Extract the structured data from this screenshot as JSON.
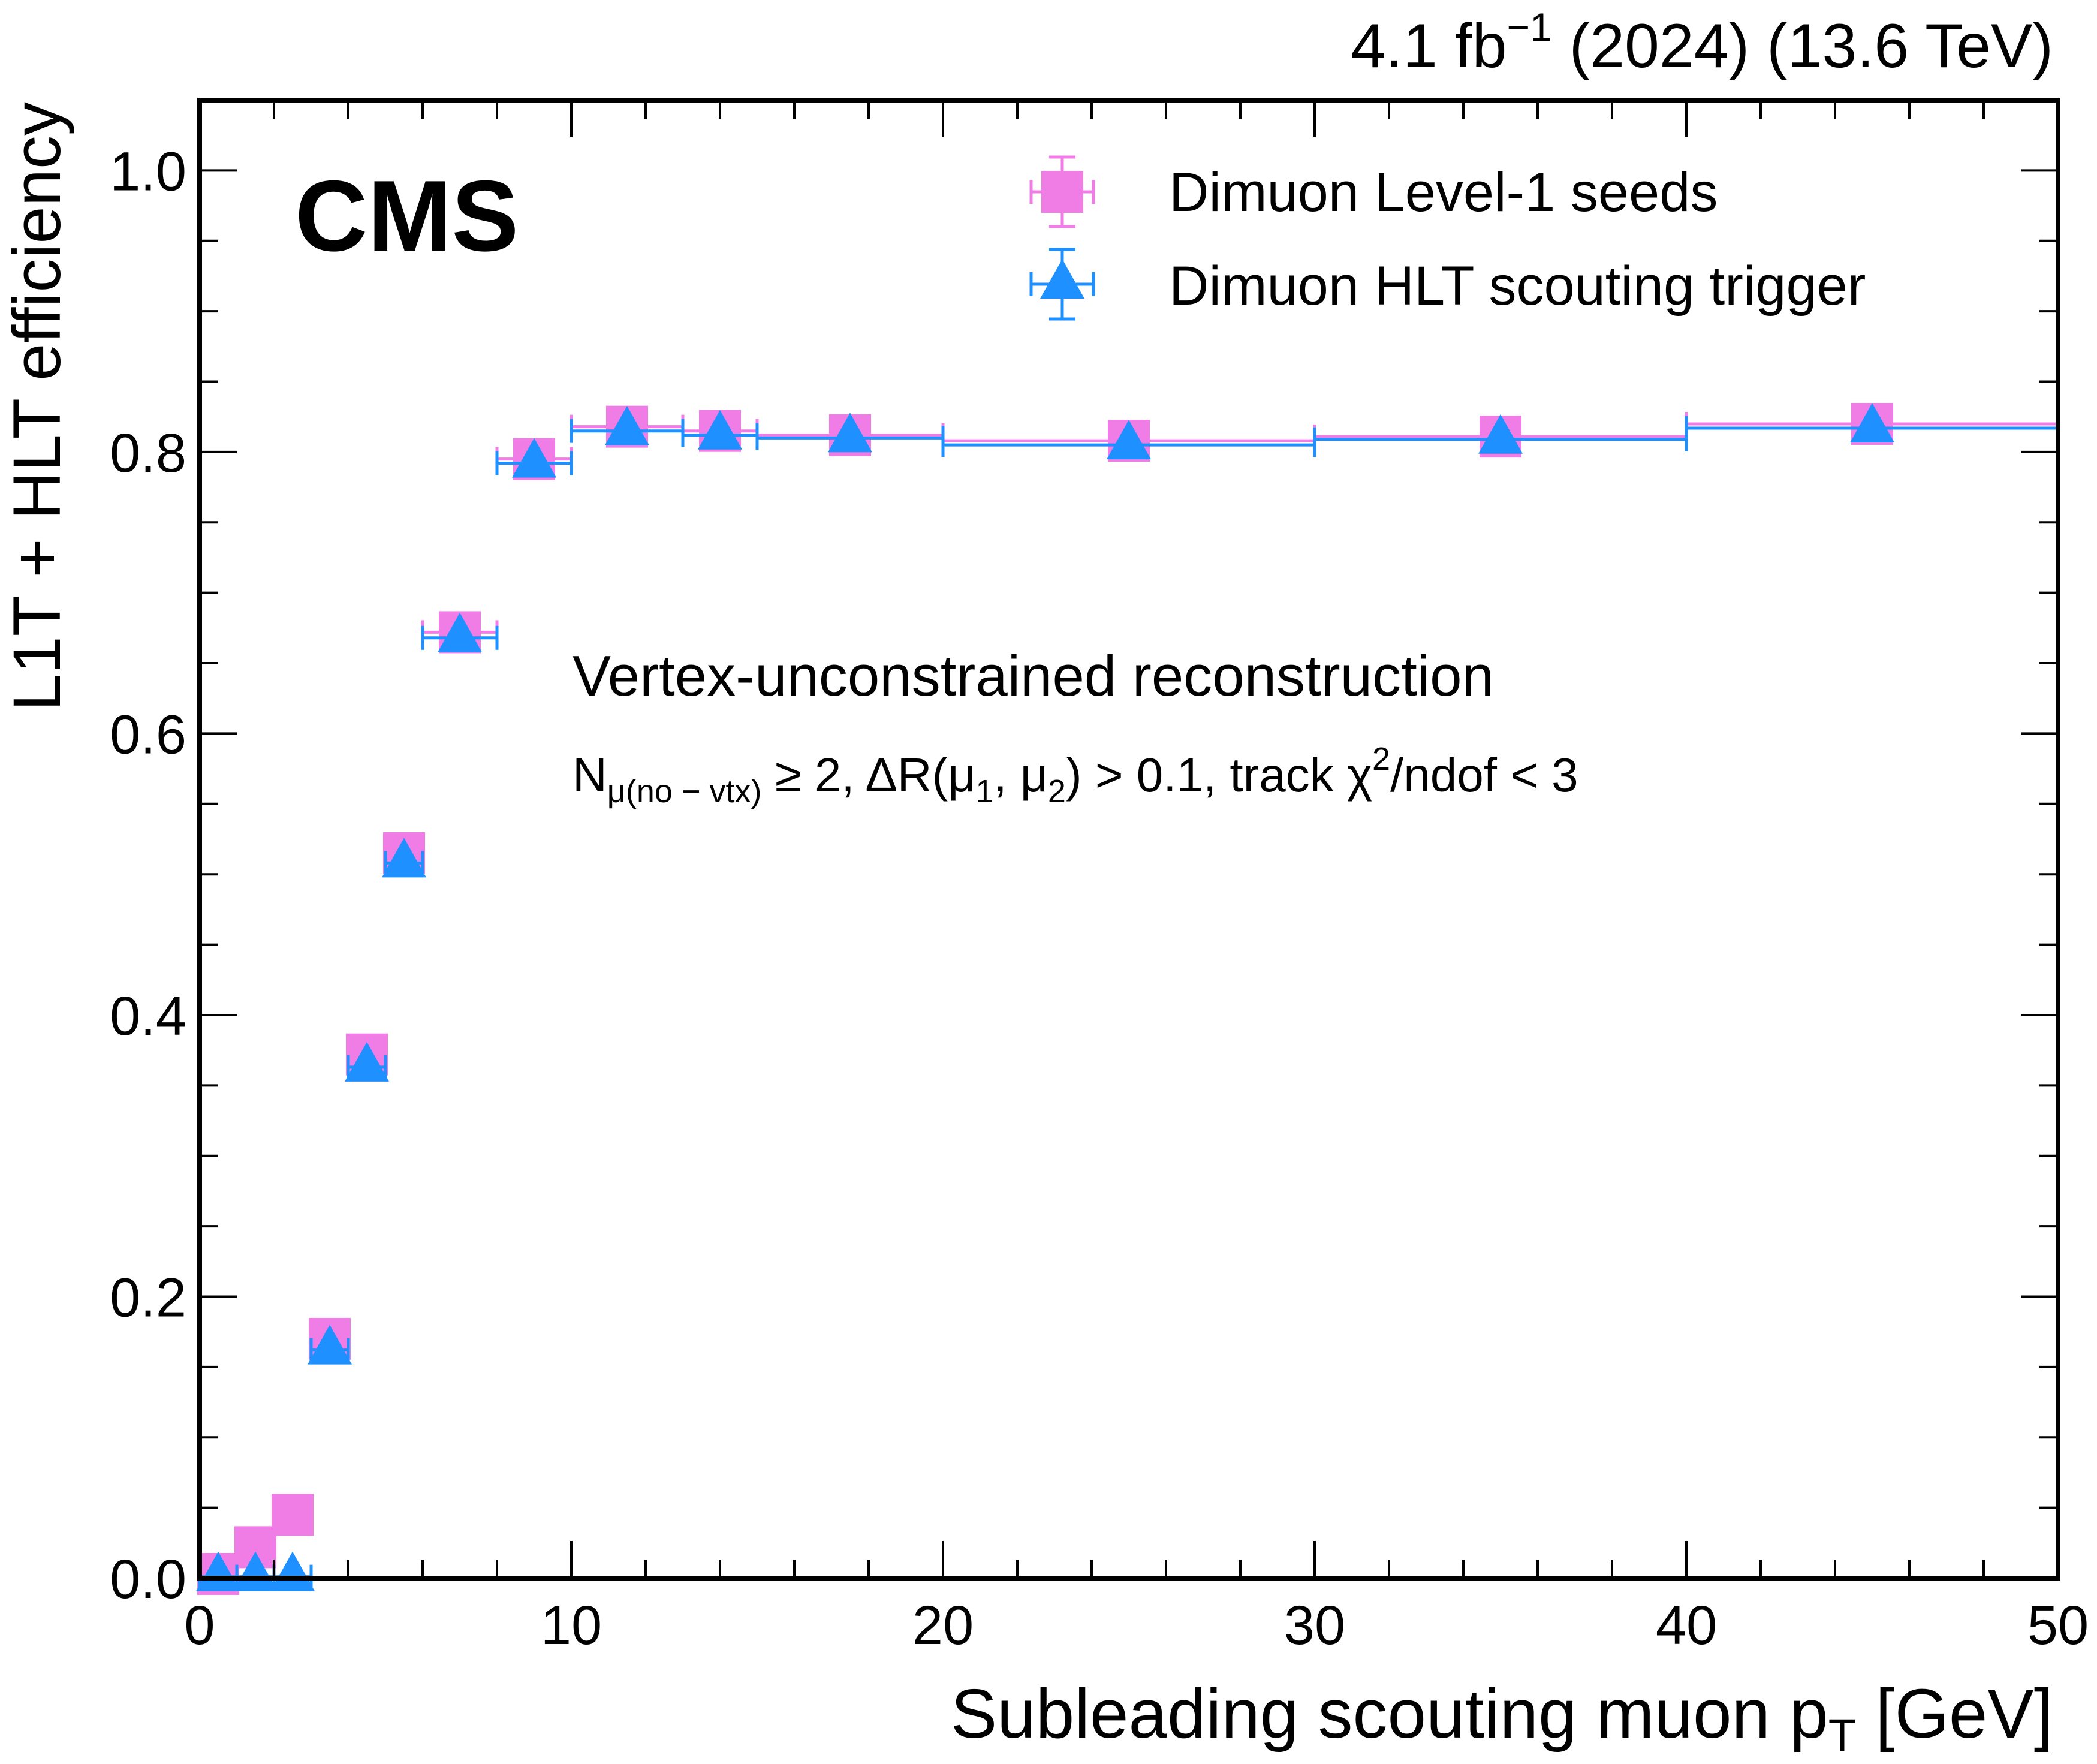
{
  "header": {
    "lumi_value": "4.1 fb",
    "lumi_exp": "−1",
    "lumi_rest": " (2024) (13.6 TeV)"
  },
  "cms_label": "CMS",
  "annotation": {
    "line1": "Vertex-unconstrained reconstruction",
    "n_sym": "N",
    "n_sub": "μ(no − vtx)",
    "part1": " ≥  2,  ΔR(μ",
    "mu1_sub": "1",
    "part2": ", μ",
    "mu2_sub": "2",
    "part3": ") > 0.1,  track χ",
    "chi_sup": "2",
    "part4": "/ndof < 3"
  },
  "chart_data": {
    "type": "scatter",
    "xlabel": "Subleading scouting muon p",
    "xlabel_sub": "T",
    "xlabel_unit": " [GeV]",
    "ylabel": "L1T + HLT efficiency",
    "xlim": [
      0,
      50
    ],
    "ylim": [
      0,
      1.05
    ],
    "x_ticks": [
      0,
      10,
      20,
      30,
      40,
      50
    ],
    "x_tick_labels": [
      "0",
      "10",
      "20",
      "30",
      "40",
      "50"
    ],
    "y_ticks": [
      0,
      0.2,
      0.4,
      0.6,
      0.8,
      1.0
    ],
    "y_tick_labels": [
      "0.0",
      "0.2",
      "0.4",
      "0.6",
      "0.8",
      "1.0"
    ],
    "grid": false,
    "legend_position": "top-right",
    "series": [
      {
        "name": "Dimuon Level-1 seeds",
        "marker": "square",
        "color": "#f07de6",
        "points": [
          {
            "x": 0.5,
            "xlo": 0,
            "xhi": 1,
            "y": 0.003
          },
          {
            "x": 1.5,
            "xlo": 1,
            "xhi": 2,
            "y": 0.022
          },
          {
            "x": 2.5,
            "xlo": 2,
            "xhi": 3,
            "y": 0.045
          },
          {
            "x": 3.5,
            "xlo": 3,
            "xhi": 4,
            "y": 0.17
          },
          {
            "x": 4.5,
            "xlo": 4,
            "xhi": 5,
            "y": 0.372
          },
          {
            "x": 5.5,
            "xlo": 5,
            "xhi": 6,
            "y": 0.515
          },
          {
            "x": 7,
            "xlo": 6,
            "xhi": 8,
            "y": 0.672
          },
          {
            "x": 9,
            "xlo": 8,
            "xhi": 10,
            "y": 0.795
          },
          {
            "x": 11.5,
            "xlo": 10,
            "xhi": 13,
            "y": 0.818
          },
          {
            "x": 14,
            "xlo": 13,
            "xhi": 15,
            "y": 0.815
          },
          {
            "x": 17.5,
            "xlo": 15,
            "xhi": 20,
            "y": 0.812
          },
          {
            "x": 25,
            "xlo": 20,
            "xhi": 30,
            "y": 0.808
          },
          {
            "x": 35,
            "xlo": 30,
            "xhi": 40,
            "y": 0.811
          },
          {
            "x": 45,
            "xlo": 40,
            "xhi": 50,
            "y": 0.82
          }
        ]
      },
      {
        "name": "Dimuon HLT scouting trigger",
        "marker": "triangle",
        "color": "#1e90ff",
        "points": [
          {
            "x": 0.5,
            "xlo": 0,
            "xhi": 1,
            "y": 0.001
          },
          {
            "x": 1.5,
            "xlo": 1,
            "xhi": 2,
            "y": 0.001
          },
          {
            "x": 2.5,
            "xlo": 2,
            "xhi": 3,
            "y": 0.001
          },
          {
            "x": 3.5,
            "xlo": 3,
            "xhi": 4,
            "y": 0.162
          },
          {
            "x": 4.5,
            "xlo": 4,
            "xhi": 5,
            "y": 0.363
          },
          {
            "x": 5.5,
            "xlo": 5,
            "xhi": 6,
            "y": 0.508
          },
          {
            "x": 7,
            "xlo": 6,
            "xhi": 8,
            "y": 0.668
          },
          {
            "x": 9,
            "xlo": 8,
            "xhi": 10,
            "y": 0.792
          },
          {
            "x": 11.5,
            "xlo": 10,
            "xhi": 13,
            "y": 0.815
          },
          {
            "x": 14,
            "xlo": 13,
            "xhi": 15,
            "y": 0.812
          },
          {
            "x": 17.5,
            "xlo": 15,
            "xhi": 20,
            "y": 0.81
          },
          {
            "x": 25,
            "xlo": 20,
            "xhi": 30,
            "y": 0.805
          },
          {
            "x": 35,
            "xlo": 30,
            "xhi": 40,
            "y": 0.809
          },
          {
            "x": 45,
            "xlo": 40,
            "xhi": 50,
            "y": 0.817
          }
        ]
      }
    ]
  }
}
